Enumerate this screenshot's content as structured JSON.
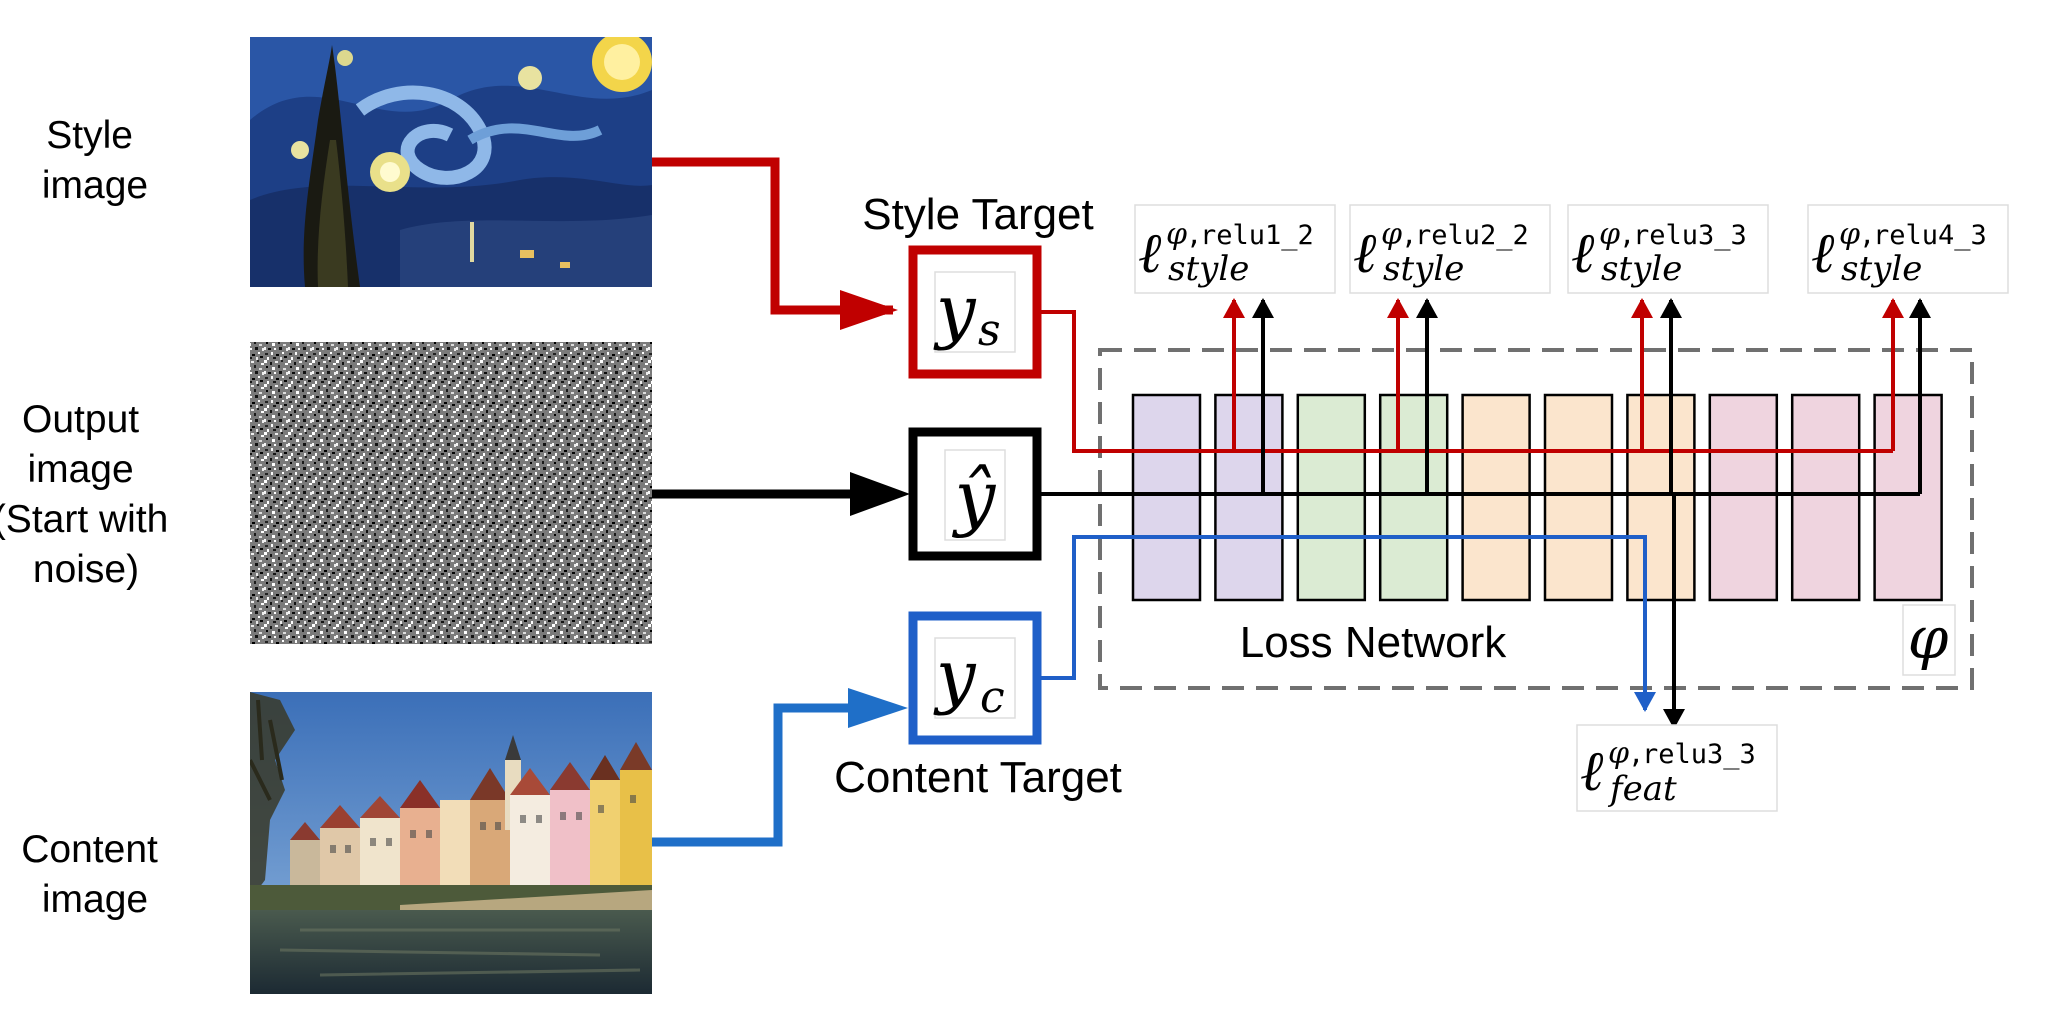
{
  "inputs": {
    "style": {
      "label_lines": [
        "Style",
        "image"
      ]
    },
    "output": {
      "label_lines": [
        "Output",
        "image",
        "(Start with",
        "noise)"
      ]
    },
    "content": {
      "label_lines": [
        "Content",
        "image"
      ]
    }
  },
  "targets": {
    "style": {
      "caption": "Style Target",
      "symbol": "y",
      "subscript": "s",
      "color": "#c00000"
    },
    "output": {
      "symbol": "ŷ",
      "color": "#000000"
    },
    "content": {
      "caption": "Content Target",
      "symbol": "y",
      "subscript": "c",
      "color": "#1f5fc8"
    }
  },
  "network": {
    "label": "Loss Network",
    "symbol": "φ",
    "layer_colors": [
      "#ddd6ec",
      "#ddd6ec",
      "#dbebd3",
      "#dbebd3",
      "#fbe5cd",
      "#fbe5cd",
      "#fbe5cd",
      "#efd4df",
      "#efd4df",
      "#efd4df"
    ]
  },
  "style_losses": [
    {
      "sup_phi": "φ",
      "layer": "relu1_2",
      "sub": "style"
    },
    {
      "sup_phi": "φ",
      "layer": "relu2_2",
      "sub": "style"
    },
    {
      "sup_phi": "φ",
      "layer": "relu3_3",
      "sub": "style"
    },
    {
      "sup_phi": "φ",
      "layer": "relu4_3",
      "sub": "style"
    }
  ],
  "feature_loss": {
    "sup_phi": "φ",
    "layer": "relu3_3",
    "sub": "feat"
  },
  "colors": {
    "style": "#c00000",
    "content": "#1f5fc8",
    "output": "#000000",
    "dash": "#707070"
  }
}
